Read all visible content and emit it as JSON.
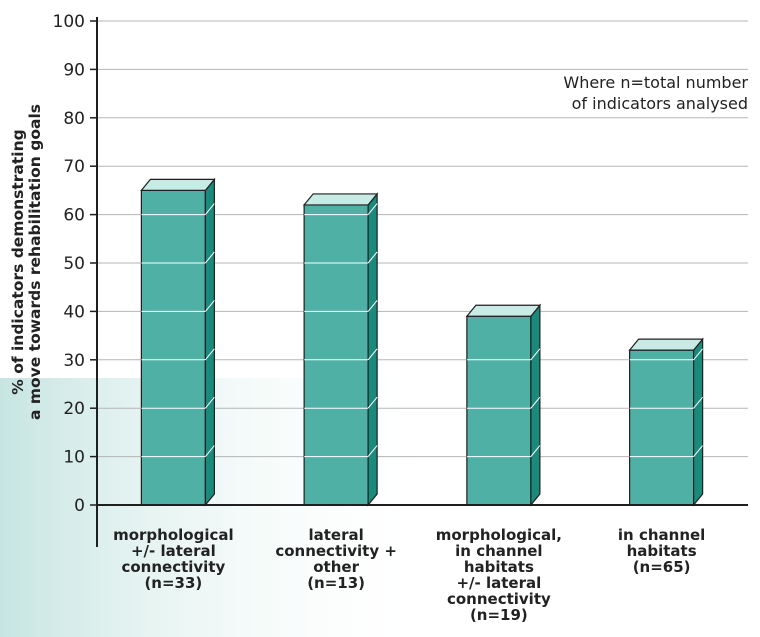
{
  "chart_data": {
    "type": "bar",
    "ylabel": [
      "% of indicators demonstrating",
      "a move towards rehabilitation goals"
    ],
    "ylim": [
      0,
      100
    ],
    "yticks": [
      0,
      10,
      20,
      30,
      40,
      50,
      60,
      70,
      80,
      90,
      100
    ],
    "grid": true,
    "categories": [
      [
        "morphological",
        "+/- lateral",
        "connectivity",
        "(n=33)"
      ],
      [
        "lateral",
        "connectivity +",
        "other",
        "(n=13)"
      ],
      [
        "morphological,",
        "in channel",
        "habitats",
        "+/- lateral",
        "connectivity",
        "(n=19)"
      ],
      [
        "in channel",
        "habitats",
        "(n=65)"
      ]
    ],
    "values": [
      65,
      62,
      39,
      32
    ],
    "annotation": [
      "Where n=total number",
      "of indicators analysed"
    ],
    "colors": {
      "bar_front": "#4fb0a6",
      "bar_side": "#1a8a7c",
      "bar_top": "#c9ebe5",
      "bar_edge": "#1f1f1f",
      "grid": "#b5b5b5",
      "axis": "#1f1f1f",
      "fade": "#cfe9e6"
    }
  }
}
